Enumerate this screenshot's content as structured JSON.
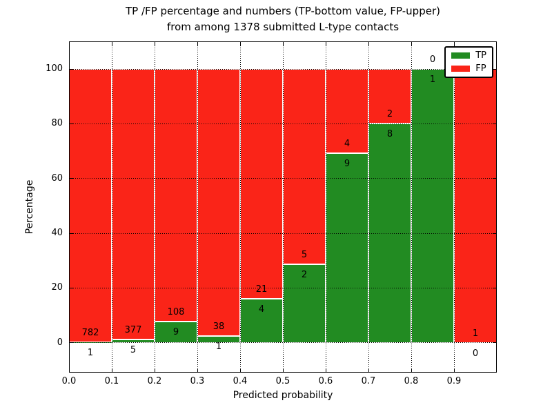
{
  "chart_data": {
    "type": "bar",
    "stacked": true,
    "title_line1": "TP /FP percentage and numbers (TP-bottom value, FP-upper)",
    "title_line2": "from among 1378 submitted L-type contacts",
    "xlabel": "Predicted probability",
    "ylabel": "Percentage",
    "xlim": [
      0.0,
      1.0
    ],
    "ylim": [
      -10.9,
      110.1
    ],
    "bin_width": 0.1,
    "grid": true,
    "grid_style": "dotted",
    "categories": [
      "0.0-0.1",
      "0.1-0.2",
      "0.2-0.3",
      "0.3-0.4",
      "0.4-0.5",
      "0.5-0.6",
      "0.6-0.7",
      "0.7-0.8",
      "0.8-0.9",
      "0.9-1.0"
    ],
    "series": [
      {
        "name": "TP",
        "color": "#228b22",
        "counts": [
          1,
          5,
          9,
          1,
          4,
          2,
          9,
          8,
          1,
          0
        ]
      },
      {
        "name": "FP",
        "color": "#fa2418",
        "counts": [
          782,
          377,
          108,
          38,
          21,
          5,
          4,
          2,
          0,
          1
        ]
      }
    ],
    "tp_percent": [
      0.13,
      1.31,
      7.69,
      2.56,
      16.0,
      28.57,
      69.23,
      80.0,
      100.0,
      0.0
    ],
    "x_ticks": {
      "values": [
        0.0,
        0.1,
        0.2,
        0.3,
        0.4,
        0.5,
        0.6,
        0.7,
        0.8,
        0.9
      ],
      "labels": [
        "0.0",
        "0.1",
        "0.2",
        "0.3",
        "0.4",
        "0.5",
        "0.6",
        "0.7",
        "0.8",
        "0.9"
      ]
    },
    "y_ticks": {
      "values": [
        0,
        20,
        40,
        60,
        80,
        100
      ],
      "labels": [
        "0",
        "20",
        "40",
        "60",
        "80",
        "100"
      ]
    },
    "legend": {
      "position": "upper right",
      "entries": [
        {
          "label": "TP",
          "color": "#228b22"
        },
        {
          "label": "FP",
          "color": "#fa2418"
        }
      ]
    }
  }
}
